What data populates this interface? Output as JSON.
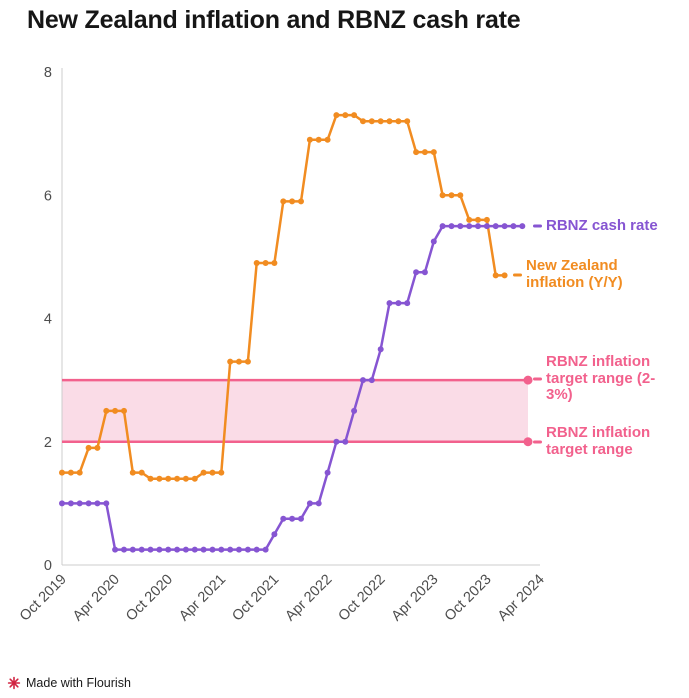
{
  "title": "New Zealand inflation and RBNZ cash rate",
  "footer": {
    "text": "Made with Flourish"
  },
  "annotations": {
    "cash_rate": "RBNZ cash rate",
    "inflation": "New Zealand inflation (Y/Y)",
    "target_top": "RBNZ inflation target range (2-3%)",
    "target_bottom": "RBNZ inflation target range"
  },
  "colors": {
    "inflation": "#f18c21",
    "cash_rate": "#8655d2",
    "band_line": "#f2618d",
    "band_fill": "#fadce7",
    "axis": "#cccccc",
    "tick_text": "#4d4d4d",
    "credit_icon": "#d12542"
  },
  "chart_data": {
    "type": "line",
    "title": "New Zealand inflation and RBNZ cash rate",
    "xlabel": "",
    "ylabel": "",
    "ylim": [
      0,
      8
    ],
    "yticks": [
      0,
      2,
      4,
      6,
      8
    ],
    "x_unit": "months from Oct 2019",
    "xtick_every_months": 6,
    "xtick_labels": [
      "Oct 2019",
      "Apr 2020",
      "Oct 2020",
      "Apr 2021",
      "Oct 2021",
      "Apr 2022",
      "Oct 2022",
      "Apr 2023",
      "Oct 2023",
      "Apr 2024"
    ],
    "grid": false,
    "legend_position": "right-annotations",
    "band": {
      "from": 2,
      "to": 3,
      "fill": "#fadce7",
      "line": "#f2618d",
      "label_top": "RBNZ inflation target range (2-3%)",
      "label_bottom": "RBNZ inflation target range"
    },
    "series": [
      {
        "name": "New Zealand inflation (Y/Y)",
        "color": "#f18c21",
        "start_month": 0,
        "values": [
          1.5,
          1.5,
          1.5,
          1.9,
          1.9,
          2.5,
          2.5,
          2.5,
          1.5,
          1.5,
          1.4,
          1.4,
          1.4,
          1.4,
          1.4,
          1.4,
          1.5,
          1.5,
          1.5,
          3.3,
          3.3,
          3.3,
          4.9,
          4.9,
          4.9,
          5.9,
          5.9,
          5.9,
          6.9,
          6.9,
          6.9,
          7.3,
          7.3,
          7.3,
          7.2,
          7.2,
          7.2,
          7.2,
          7.2,
          7.2,
          6.7,
          6.7,
          6.7,
          6.0,
          6.0,
          6.0,
          5.6,
          5.6,
          5.6,
          4.7,
          4.7
        ]
      },
      {
        "name": "RBNZ cash rate",
        "color": "#8655d2",
        "start_month": 0,
        "values": [
          1.0,
          1.0,
          1.0,
          1.0,
          1.0,
          1.0,
          0.25,
          0.25,
          0.25,
          0.25,
          0.25,
          0.25,
          0.25,
          0.25,
          0.25,
          0.25,
          0.25,
          0.25,
          0.25,
          0.25,
          0.25,
          0.25,
          0.25,
          0.25,
          0.5,
          0.75,
          0.75,
          0.75,
          1.0,
          1.0,
          1.5,
          2.0,
          2.0,
          2.5,
          3.0,
          3.0,
          3.5,
          4.25,
          4.25,
          4.25,
          4.75,
          4.75,
          5.25,
          5.5,
          5.5,
          5.5,
          5.5,
          5.5,
          5.5,
          5.5,
          5.5,
          5.5,
          5.5
        ]
      }
    ]
  }
}
